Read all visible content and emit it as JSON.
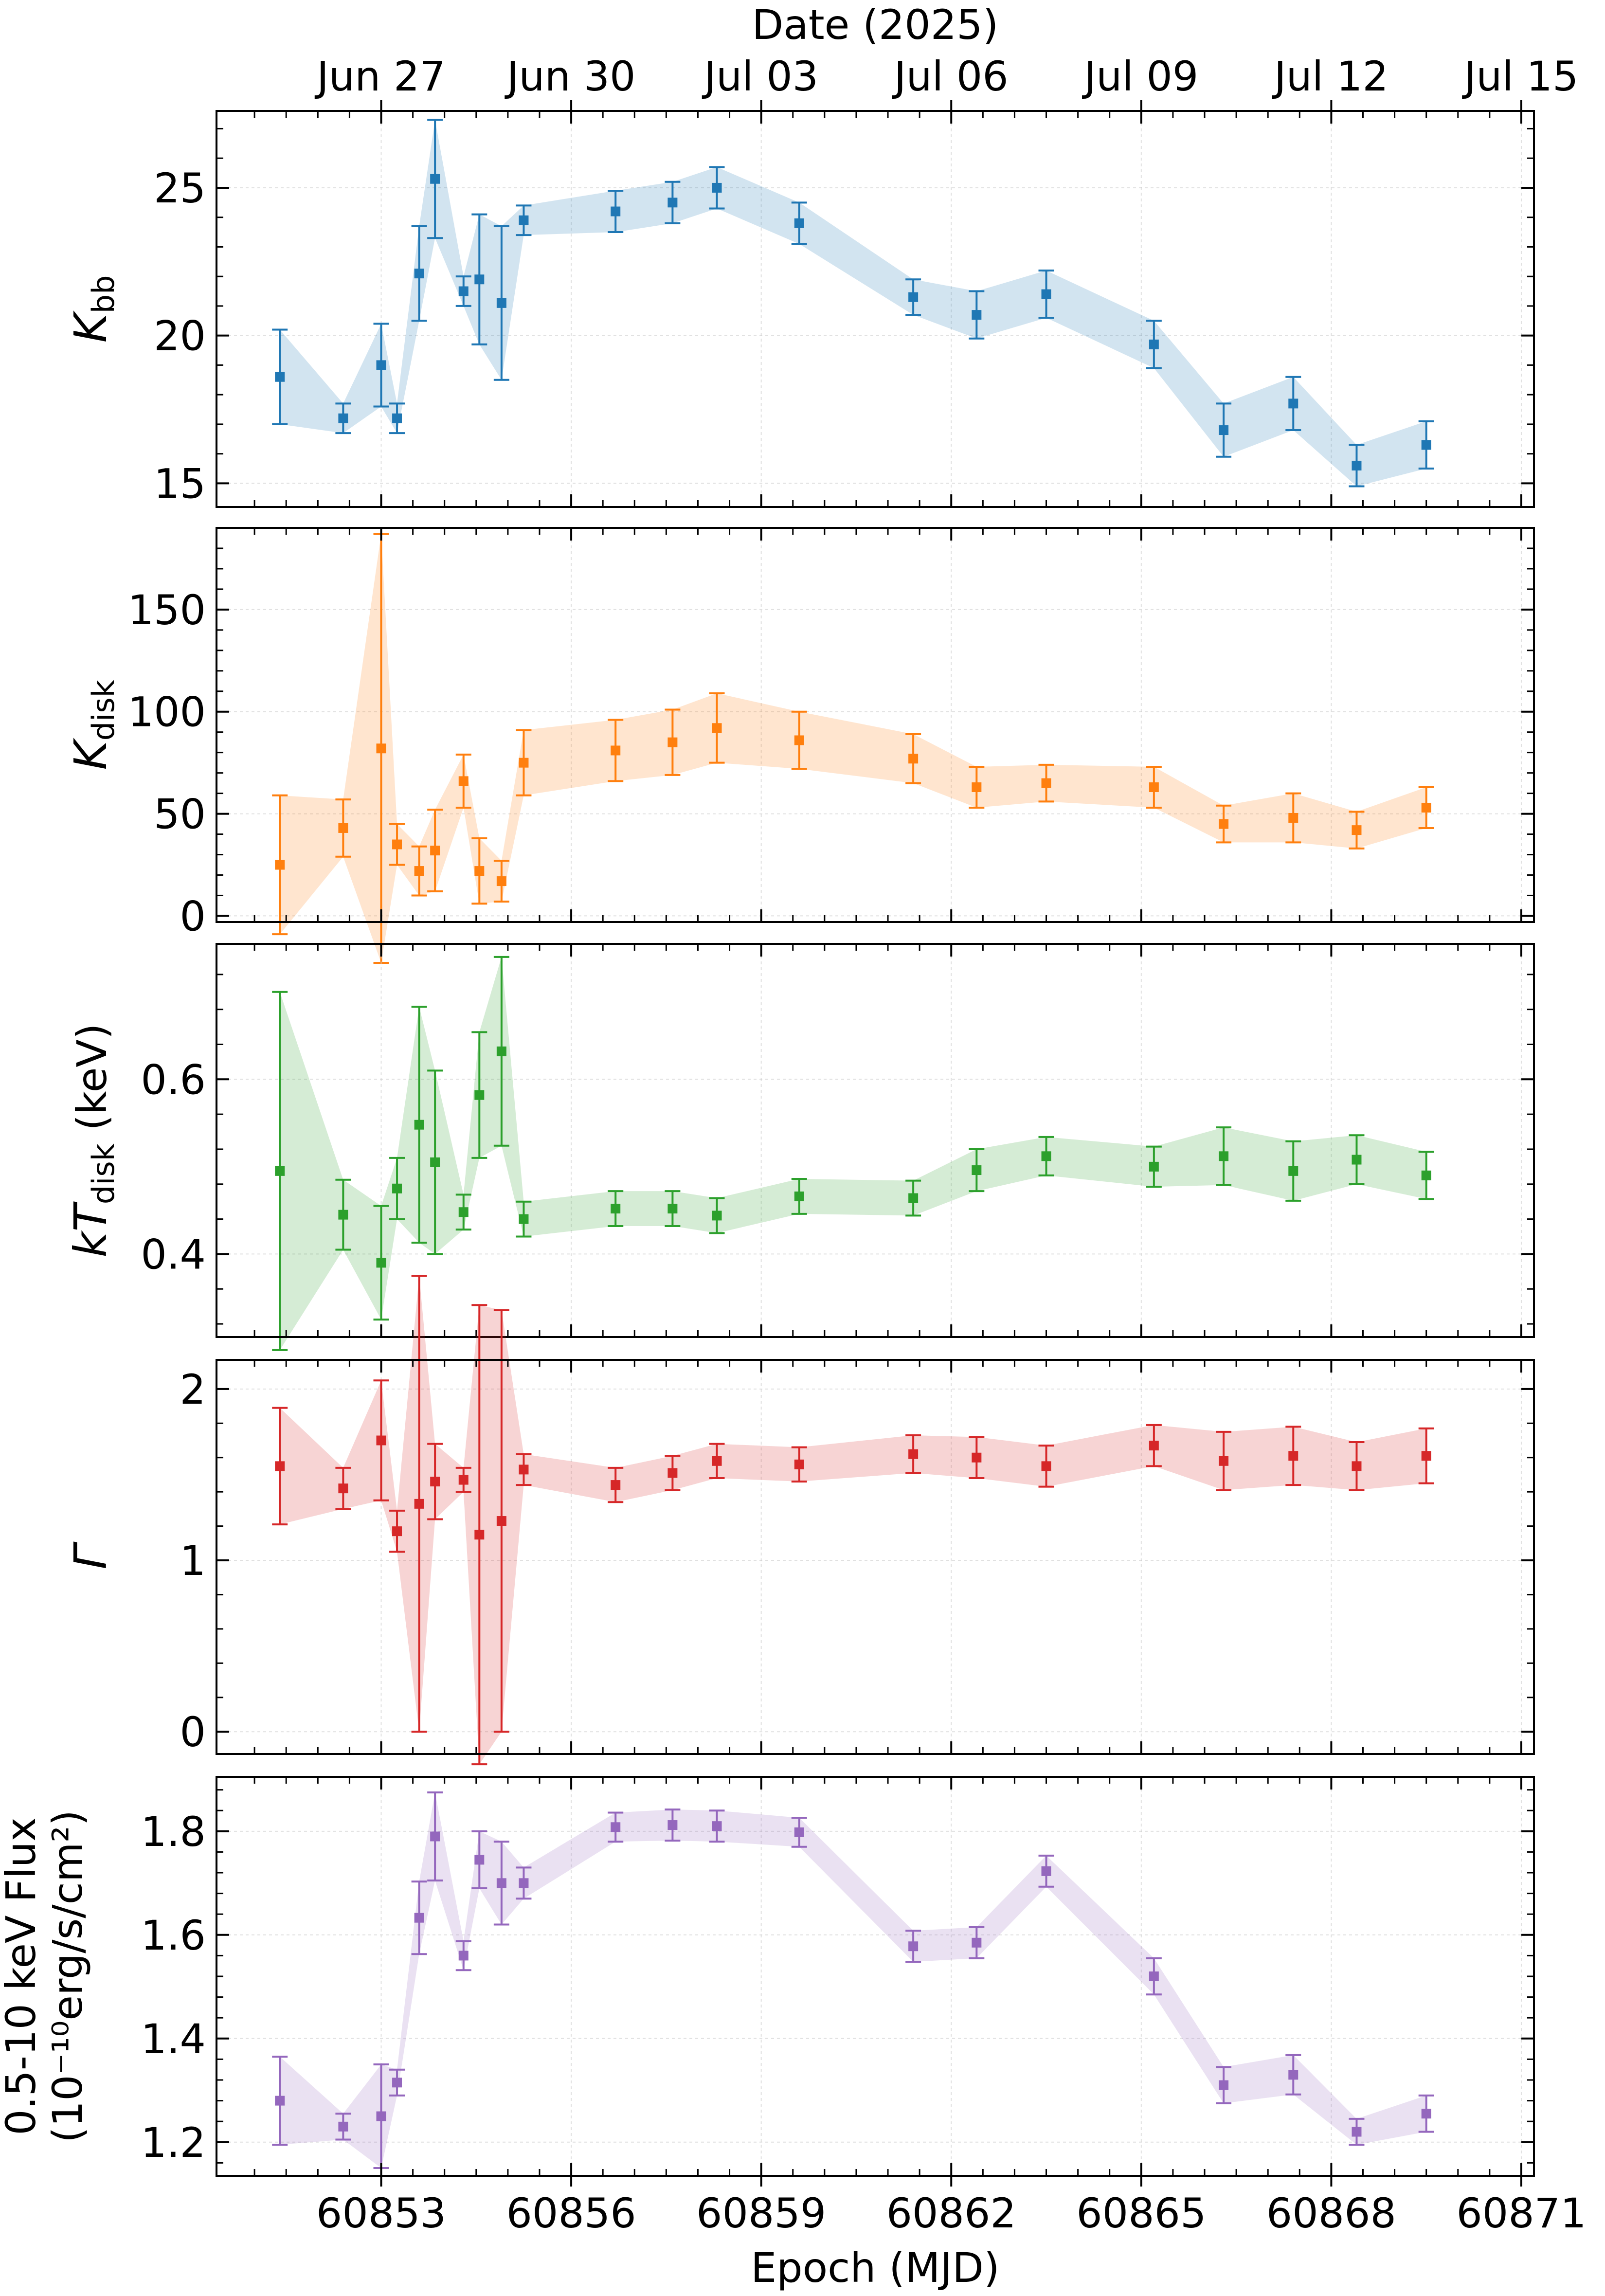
{
  "chart_data": {
    "type": "line",
    "top_axis_title": "Date (2025)",
    "top_ticks": [
      {
        "mjd": 60853,
        "label": "Jun 27"
      },
      {
        "mjd": 60856,
        "label": "Jun 30"
      },
      {
        "mjd": 60859,
        "label": "Jul 03"
      },
      {
        "mjd": 60862,
        "label": "Jul 06"
      },
      {
        "mjd": 60865,
        "label": "Jul 09"
      },
      {
        "mjd": 60868,
        "label": "Jul 12"
      },
      {
        "mjd": 60871,
        "label": "Jul 15"
      }
    ],
    "xlabel": "Epoch (MJD)",
    "xlim": [
      60850.4,
      60871.2
    ],
    "x_ticks": [
      60853,
      60856,
      60859,
      60862,
      60865,
      60868,
      60871
    ],
    "x_tick_labels": [
      "60853",
      "60856",
      "60859",
      "60862",
      "60865",
      "60868",
      "60871"
    ],
    "x": [
      60851.4,
      60852.4,
      60853.0,
      60853.25,
      60853.6,
      60853.85,
      60854.3,
      60854.55,
      60854.9,
      60855.25,
      60856.7,
      60857.6,
      60858.3,
      60859.6,
      60861.4,
      60862.4,
      60863.5,
      60865.2,
      60866.3,
      60867.4,
      60868.4,
      60869.5
    ],
    "panels": [
      {
        "name": "Kbb",
        "ylabel_main": "K",
        "ylabel_sub": "bb",
        "color": "#1f77b4",
        "ylim": [
          14.2,
          27.6
        ],
        "yticks": [
          15,
          20,
          25
        ],
        "ytick_labels": [
          "15",
          "20",
          "25"
        ],
        "values": [
          18.6,
          17.2,
          19.0,
          17.2,
          22.1,
          25.3,
          21.5,
          21.9,
          21.1,
          23.9,
          24.2,
          24.5,
          25.0,
          23.8,
          21.3,
          20.7,
          21.4,
          19.7,
          16.8,
          17.7,
          15.6,
          16.3
        ],
        "err": [
          1.6,
          0.5,
          1.4,
          0.5,
          1.6,
          2.0,
          0.5,
          2.2,
          2.6,
          0.5,
          0.7,
          0.7,
          0.7,
          0.7,
          0.6,
          0.8,
          0.8,
          0.8,
          0.9,
          0.9,
          0.7,
          0.8
        ]
      },
      {
        "name": "Kdisk",
        "ylabel_main": "K",
        "ylabel_sub": "disk",
        "color": "#ff7f0e",
        "ylim": [
          -3,
          190
        ],
        "yticks": [
          0,
          50,
          100,
          150
        ],
        "ytick_labels": [
          "0",
          "50",
          "100",
          "150"
        ],
        "values": [
          25,
          43,
          82,
          35,
          22,
          32,
          66,
          22,
          17,
          75,
          81,
          85,
          92,
          86,
          77,
          63,
          65,
          63,
          45,
          48,
          42,
          53
        ],
        "err": [
          34,
          14,
          105,
          10,
          12,
          20,
          13,
          16,
          10,
          16,
          15,
          16,
          17,
          14,
          12,
          10,
          9,
          10,
          9,
          12,
          9,
          10
        ]
      },
      {
        "name": "kTdisk",
        "ylabel_main": "kT",
        "ylabel_sub": "disk",
        "ylabel_unit": " (keV)",
        "color": "#2ca02c",
        "ylim": [
          0.305,
          0.755
        ],
        "yticks": [
          0.4,
          0.6
        ],
        "ytick_labels": [
          "0.4",
          "0.6"
        ],
        "values": [
          0.495,
          0.445,
          0.39,
          0.475,
          0.548,
          0.505,
          0.448,
          0.582,
          0.632,
          0.44,
          0.452,
          0.452,
          0.444,
          0.466,
          0.464,
          0.496,
          0.512,
          0.5,
          0.512,
          0.495,
          0.508,
          0.49
        ],
        "err": [
          0.205,
          0.04,
          0.065,
          0.035,
          0.135,
          0.105,
          0.02,
          0.072,
          0.108,
          0.02,
          0.02,
          0.02,
          0.02,
          0.02,
          0.02,
          0.024,
          0.022,
          0.023,
          0.033,
          0.034,
          0.028,
          0.027
        ]
      },
      {
        "name": "Gamma",
        "ylabel_main": "Γ",
        "color": "#d62728",
        "ylim": [
          -0.13,
          2.17
        ],
        "yticks": [
          0,
          1,
          2
        ],
        "ytick_labels": [
          "0",
          "1",
          "2"
        ],
        "values": [
          1.55,
          1.42,
          1.7,
          1.17,
          1.33,
          1.46,
          1.47,
          1.15,
          1.23,
          1.53,
          1.44,
          1.51,
          1.58,
          1.56,
          1.62,
          1.6,
          1.55,
          1.67,
          1.58,
          1.61,
          1.55,
          1.61
        ],
        "err": [
          0.34,
          0.12,
          0.35,
          0.12,
          1.33,
          0.22,
          0.07,
          1.34,
          1.23,
          0.09,
          0.1,
          0.1,
          0.1,
          0.1,
          0.11,
          0.12,
          0.12,
          0.12,
          0.17,
          0.17,
          0.14,
          0.16
        ]
      },
      {
        "name": "Flux",
        "ylabel_line1": "0.5-10 keV Flux",
        "ylabel_line2": "(10⁻¹⁰erg/s/cm²)",
        "color": "#9467bd",
        "ylim": [
          1.135,
          1.905
        ],
        "yticks": [
          1.2,
          1.4,
          1.6,
          1.8
        ],
        "ytick_labels": [
          "1.2",
          "1.4",
          "1.6",
          "1.8"
        ],
        "values": [
          1.28,
          1.23,
          1.25,
          1.315,
          1.633,
          1.79,
          1.56,
          1.745,
          1.7,
          1.7,
          1.808,
          1.812,
          1.81,
          1.798,
          1.578,
          1.585,
          1.723,
          1.52,
          1.31,
          1.33,
          1.22,
          1.255
        ],
        "err": [
          0.085,
          0.025,
          0.1,
          0.025,
          0.07,
          0.085,
          0.028,
          0.055,
          0.08,
          0.03,
          0.028,
          0.03,
          0.03,
          0.028,
          0.03,
          0.03,
          0.03,
          0.035,
          0.035,
          0.038,
          0.025,
          0.035
        ]
      }
    ]
  }
}
